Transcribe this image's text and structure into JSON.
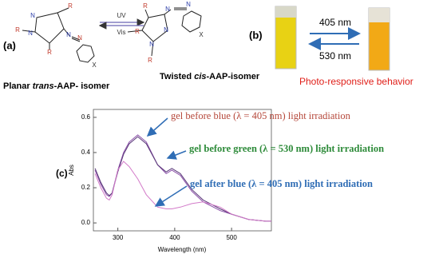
{
  "panel_a": {
    "label": "(a)",
    "forward": "UV",
    "backward": "Vis",
    "left_atoms": [
      "R",
      "N",
      "R",
      "N",
      "R",
      "N",
      "N",
      "X"
    ],
    "right_atoms": [
      "R",
      "N",
      "N",
      "R",
      "N",
      "N",
      "R",
      "X"
    ],
    "left_caption": [
      "Planar ",
      "trans",
      "-AAP- isomer"
    ],
    "right_caption": [
      "Twisted ",
      "cis",
      "-AAP-isomer"
    ]
  },
  "panel_b": {
    "label": "(b)",
    "forward": "405 nm",
    "backward": "530 nm",
    "caption": "Photo-responsive behavior"
  },
  "chart_data": {
    "type": "line",
    "panel_label": "(c)",
    "x_label": "Wavelength (nm)",
    "y_label": "Abs",
    "x": [
      260,
      270,
      280,
      285,
      290,
      300,
      310,
      320,
      335,
      350,
      370,
      385,
      395,
      410,
      430,
      450,
      480,
      500,
      530,
      560,
      570
    ],
    "series": [
      {
        "name": "gel before blue (λ = 405 nm) light irradiation",
        "color": "#8a4fa8",
        "label_color": "#b5473a",
        "values": [
          0.3,
          0.22,
          0.16,
          0.15,
          0.17,
          0.3,
          0.4,
          0.46,
          0.5,
          0.46,
          0.33,
          0.28,
          0.3,
          0.27,
          0.18,
          0.12,
          0.07,
          0.05,
          0.02,
          0.01,
          0.01
        ]
      },
      {
        "name": "gel before green (λ = 530 nm) light irradiation",
        "color": "#5b3a7a",
        "label_color": "#2e8b3a",
        "values": [
          0.31,
          0.23,
          0.17,
          0.155,
          0.17,
          0.29,
          0.39,
          0.45,
          0.49,
          0.45,
          0.33,
          0.29,
          0.31,
          0.28,
          0.19,
          0.13,
          0.08,
          0.05,
          0.02,
          0.01,
          0.01
        ]
      },
      {
        "name": "gel after blue (λ = 405 nm) light irradiation",
        "color": "#d37bc9",
        "label_color": "#2f6db5",
        "values": [
          0.28,
          0.2,
          0.14,
          0.13,
          0.16,
          0.3,
          0.35,
          0.32,
          0.25,
          0.16,
          0.09,
          0.08,
          0.08,
          0.09,
          0.11,
          0.12,
          0.09,
          0.05,
          0.02,
          0.01,
          0.01
        ]
      }
    ],
    "xlim": [
      257,
      570
    ],
    "ylim": [
      -0.045,
      0.645
    ],
    "xticks": [
      300,
      400,
      500
    ],
    "yticks": [
      {
        "value": 0,
        "label": "0.0"
      },
      0.2,
      0.4,
      0.6
    ]
  }
}
